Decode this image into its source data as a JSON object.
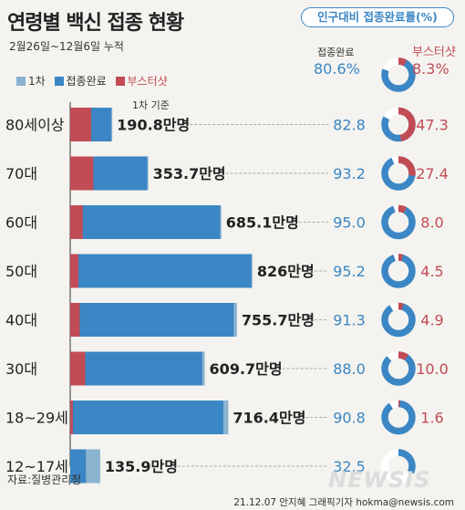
{
  "title": "연령별 백신 접종 현황",
  "subtitle": "2월26일~12월6일 누적",
  "header_badge": "인구대비 접종완료률(%)",
  "legend": {
    "first": "1차",
    "complete": "접종완료",
    "booster": "부스터샷"
  },
  "top_note": {
    "complete_label": "접종완료",
    "complete_value": "80.6%",
    "booster_label": "부스터샷",
    "booster_value": "8.3%"
  },
  "first_dose_note": "1차 기준",
  "source": "자료:질병관리청",
  "credit": "21.12.07 안지혜 그래픽기자 hokma@newsis.com",
  "watermark": "NEWSIS",
  "colors": {
    "first": "#8ab3d0",
    "complete": "#3b86c4",
    "booster": "#c24c55",
    "ring_bg": "#ffffff"
  },
  "chart_data": {
    "type": "bar",
    "categories": [
      "80세이상",
      "70대",
      "60대",
      "50대",
      "40대",
      "30대",
      "18~29세",
      "12~17세"
    ],
    "first_dose_labels": [
      "190.8만명",
      "353.7만명",
      "685.1만명",
      "826만명",
      "755.7만명",
      "609.7만명",
      "716.4만명",
      "135.9만명"
    ],
    "series": [
      {
        "name": "1차",
        "values": [
          190.8,
          353.7,
          685.1,
          826,
          755.7,
          609.7,
          716.4,
          135.9
        ]
      },
      {
        "name": "접종완료",
        "values": [
          186,
          349,
          679,
          821,
          741,
          598,
          694,
          71
        ]
      },
      {
        "name": "부스터샷",
        "values": [
          95,
          105,
          57,
          37,
          43,
          68,
          12,
          0
        ]
      }
    ],
    "complete_rate": [
      82.8,
      93.2,
      95.0,
      95.2,
      91.3,
      88.0,
      90.8,
      32.5
    ],
    "complete_rate_labels": [
      "82.8",
      "93.2",
      "95.0",
      "95.2",
      "91.3",
      "88.0",
      "90.8",
      "32.5"
    ],
    "booster_rate": [
      47.3,
      27.4,
      8.0,
      4.5,
      4.9,
      10.0,
      1.6,
      0
    ],
    "booster_rate_labels": [
      "47.3",
      "27.4",
      "8.0",
      "4.5",
      "4.9",
      "10.0",
      "1.6",
      ""
    ],
    "total": {
      "complete_rate": 80.6,
      "booster_rate": 8.3
    }
  }
}
